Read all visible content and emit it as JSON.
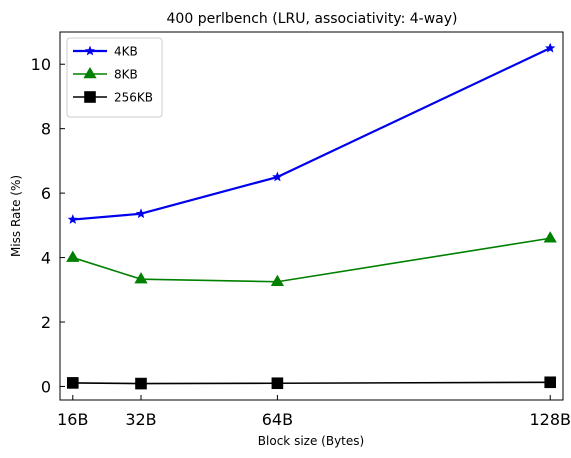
{
  "chart_data": {
    "type": "line",
    "title": "400 perlbench (LRU, associativity: 4-way)",
    "xlabel": "Block size (Bytes)",
    "ylabel": "Miss Rate (%)",
    "x": [
      16,
      32,
      64,
      128
    ],
    "x_tick_labels": [
      "16B",
      "32B",
      "64B",
      "128B"
    ],
    "xlim": [
      13,
      131
    ],
    "y_ticks": [
      0,
      2,
      4,
      6,
      8,
      10
    ],
    "ylim": [
      -0.42,
      11.0
    ],
    "grid": false,
    "legend_position": "upper-left",
    "series": [
      {
        "name": "4KB",
        "values": [
          5.18,
          5.36,
          6.5,
          10.5
        ],
        "color": "#0000ee",
        "marker": "star",
        "line_width": 2.2
      },
      {
        "name": "8KB",
        "values": [
          4.0,
          3.33,
          3.25,
          4.6
        ],
        "color": "#008000",
        "marker": "triangle",
        "line_width": 1.6
      },
      {
        "name": "256KB",
        "values": [
          0.11,
          0.09,
          0.1,
          0.13
        ],
        "color": "#000000",
        "marker": "square",
        "line_width": 1.6
      }
    ]
  }
}
